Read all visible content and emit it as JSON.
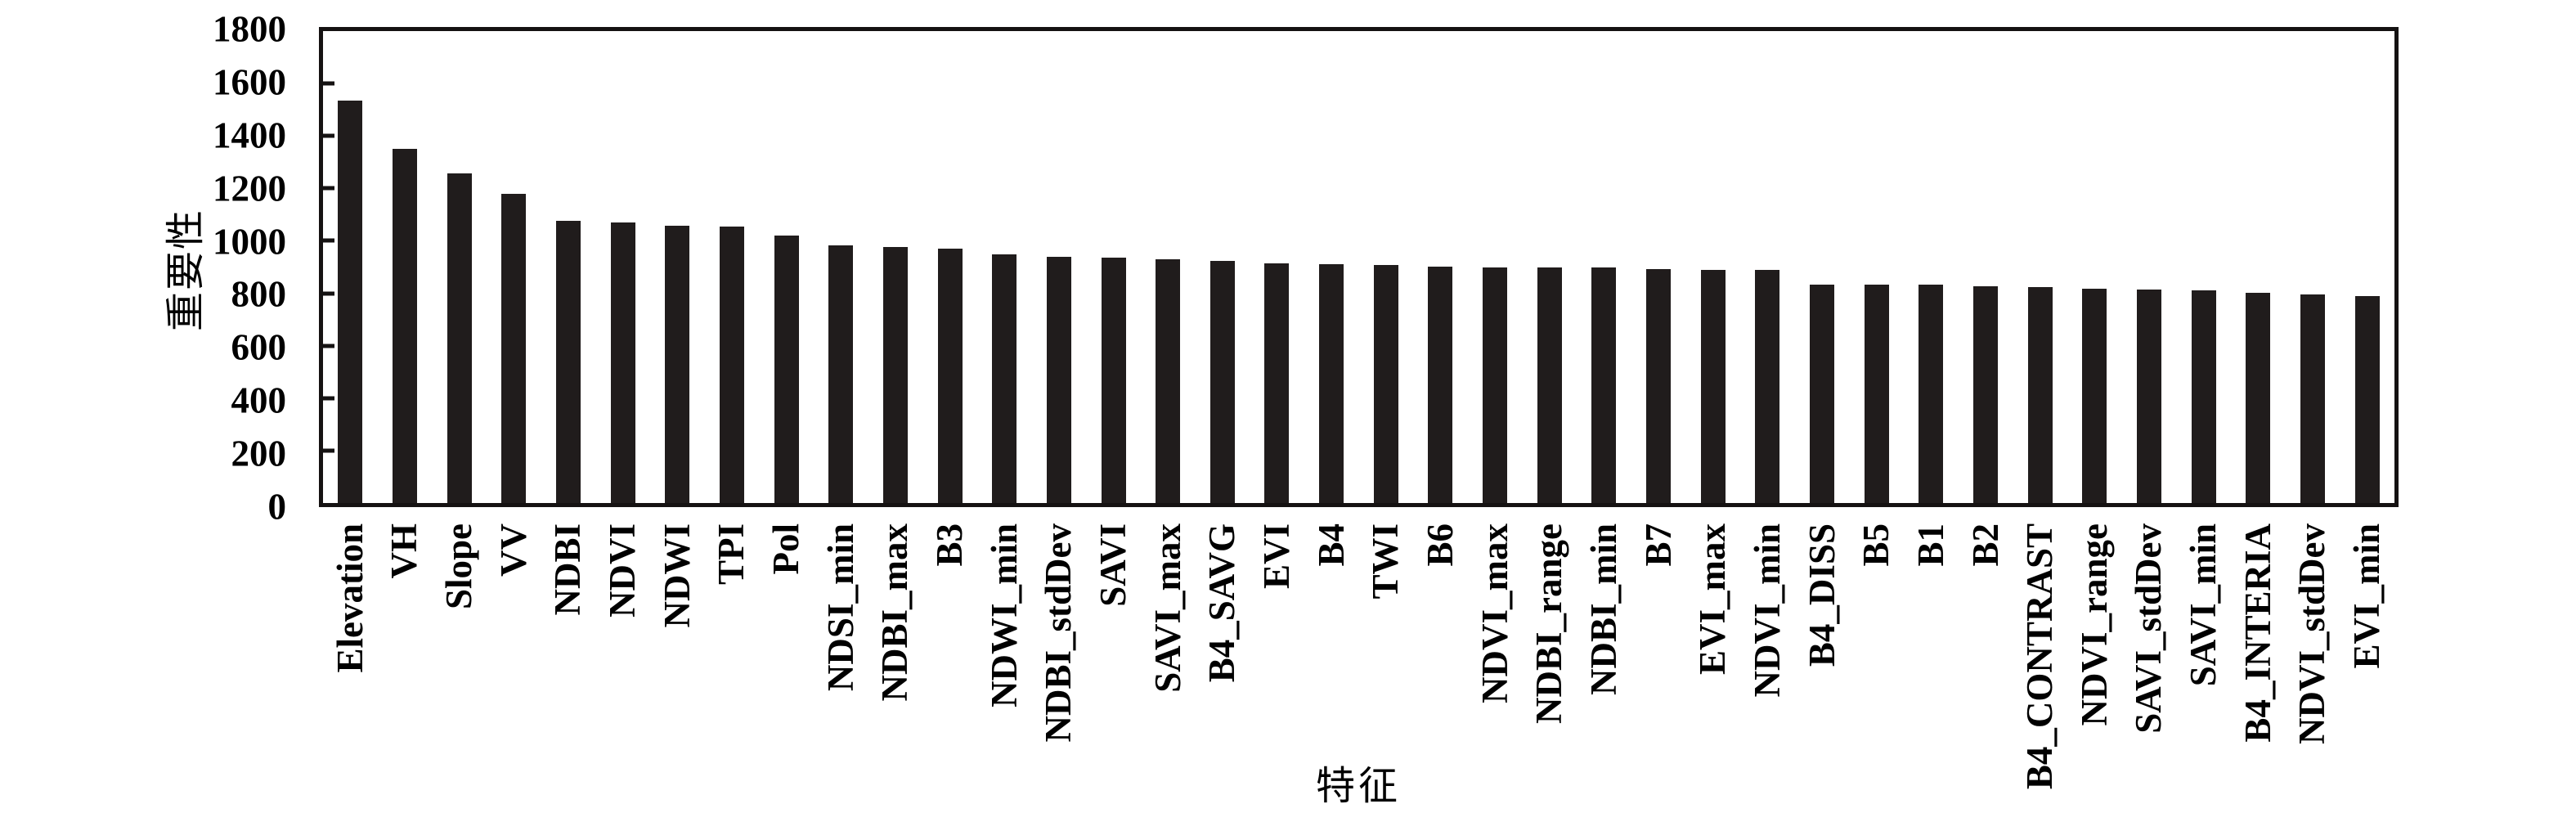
{
  "chart_data": {
    "type": "bar",
    "title": "",
    "ylabel": "重要性",
    "xlabel": "特征",
    "ylim": [
      0,
      1800
    ],
    "y_ticks": [
      0,
      200,
      400,
      600,
      800,
      1000,
      1200,
      1400,
      1600,
      1800
    ],
    "grid": false,
    "legend_position": "none",
    "bar_color": "#201c1c",
    "axis_color": "#151212",
    "background_color": "#ffffff",
    "categories": [
      "Elevation",
      "VH",
      "Slope",
      "VV",
      "NDBI",
      "NDVI",
      "NDWI",
      "TPI",
      "Pol",
      "NDSI_min",
      "NDBI_max",
      "B3",
      "NDWI_min",
      "NDBI_stdDev",
      "SAVI",
      "SAVI_max",
      "B4_SAVG",
      "EVI",
      "B4",
      "TWI",
      "B6",
      "NDVI_max",
      "NDBI_range",
      "NDBI_min",
      "B7",
      "EVI_max",
      "NDVI_min",
      "B4_DISS",
      "B5",
      "B1",
      "B2",
      "B4_CONTRAST",
      "NDVI_range",
      "SAVI_stdDev",
      "SAVI_min",
      "B4_INTERIA",
      "NDVI_stdDev",
      "EVI_min"
    ],
    "values": [
      1535,
      1352,
      1256,
      1180,
      1075,
      1070,
      1057,
      1055,
      1019,
      982,
      976,
      971,
      947,
      940,
      936,
      931,
      922,
      913,
      910,
      907,
      903,
      899,
      898,
      897,
      893,
      890,
      888,
      833,
      834,
      832,
      828,
      823,
      817,
      813,
      811,
      801,
      796,
      790
    ]
  }
}
